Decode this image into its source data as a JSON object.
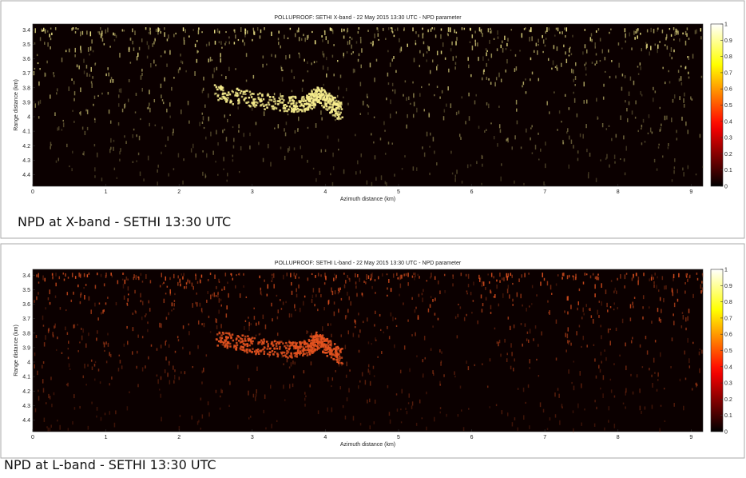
{
  "chart_data": [
    {
      "type": "heatmap",
      "title": "POLLUPROOF: SETHI X-band - 22 May 2015 13:30 UTC - NPD parameter",
      "x_label": "Azimuth distance (km)",
      "y_label": "Range distance (km)",
      "caption": "NPD at X-band - SETHI 13:30 UTC",
      "xlim": [
        0,
        9.16
      ],
      "xticks": [
        0,
        1,
        2,
        3,
        4,
        5,
        6,
        7,
        8,
        9
      ],
      "ylim": [
        3.36,
        4.48
      ],
      "y_reversed": true,
      "yticks": [
        3.4,
        3.5,
        3.6,
        3.7,
        3.8,
        3.9,
        4,
        4.1,
        4.2,
        4.3,
        4.4
      ],
      "colormap": "hot",
      "colorbar_lim": [
        0,
        1
      ],
      "colorbar_ticks": [
        0,
        0.1,
        0.2,
        0.3,
        0.4,
        0.5,
        0.6,
        0.7,
        0.8,
        0.9,
        1
      ],
      "color": "#f6ec8c"
    },
    {
      "type": "heatmap",
      "title": "POLLUPROOF: SETHI L-band - 22 May 2015 13:30 UTC - NPD parameter",
      "x_label": "Azimuth distance (km)",
      "y_label": "Range distance (km)",
      "caption": "NPD at L-band - SETHI 13:30 UTC",
      "xlim": [
        0,
        9.16
      ],
      "xticks": [
        0,
        1,
        2,
        3,
        4,
        5,
        6,
        7,
        8,
        9
      ],
      "ylim": [
        3.36,
        4.48
      ],
      "y_reversed": true,
      "yticks": [
        3.4,
        3.5,
        3.6,
        3.7,
        3.8,
        3.9,
        4,
        4.1,
        4.2,
        4.3,
        4.4
      ],
      "colormap": "hot",
      "colorbar_lim": [
        0,
        1
      ],
      "colorbar_ticks": [
        0,
        0.1,
        0.2,
        0.3,
        0.4,
        0.5,
        0.6,
        0.7,
        0.8,
        0.9,
        1
      ],
      "color": "#e3521f"
    }
  ]
}
